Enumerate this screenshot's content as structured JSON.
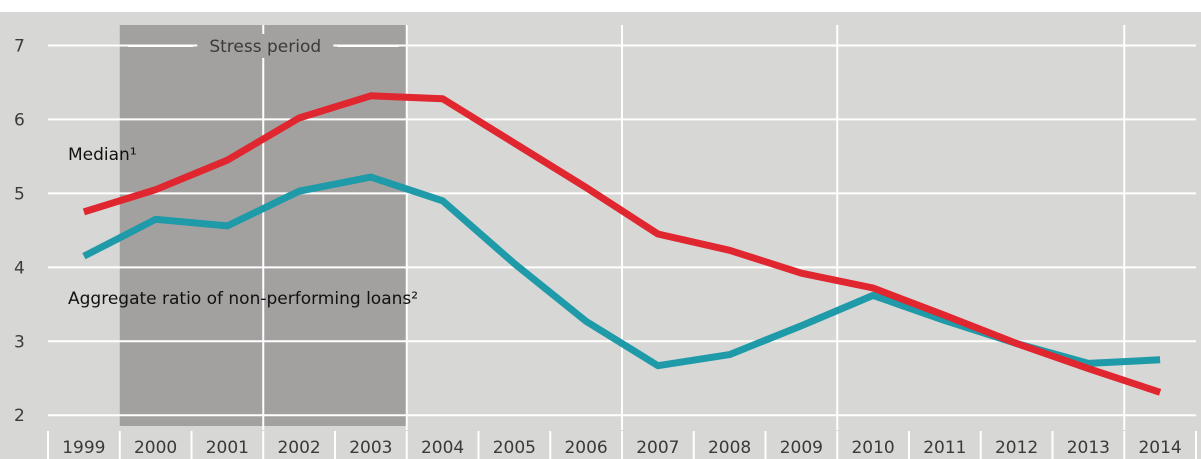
{
  "chart_data": {
    "type": "line",
    "x": [
      1999,
      2000,
      2001,
      2002,
      2003,
      2004,
      2005,
      2006,
      2007,
      2008,
      2009,
      2010,
      2011,
      2012,
      2013,
      2014
    ],
    "x_tick_labels": [
      "1999",
      "2000",
      "2001",
      "2002",
      "2003",
      "2004",
      "2005",
      "2006",
      "2007",
      "2008",
      "2009",
      "2010",
      "2011",
      "2012",
      "2013",
      "2014"
    ],
    "y_ticks": [
      "2",
      "3",
      "4",
      "5",
      "6",
      "7"
    ],
    "ylim": [
      1.8,
      7.25
    ],
    "grid": true,
    "stress_period": {
      "label": "Stress period",
      "from": 2000,
      "to": 2003
    },
    "series": [
      {
        "name": "Median¹",
        "color": "#e0262f",
        "values": [
          4.75,
          5.05,
          5.45,
          6.02,
          6.32,
          6.28,
          5.68,
          5.08,
          4.45,
          4.23,
          3.92,
          3.72,
          3.35,
          2.97,
          2.63,
          2.31
        ]
      },
      {
        "name": "Aggregate ratio of non-performing loans²",
        "color": "#1e9aa8",
        "values": [
          4.15,
          4.65,
          4.56,
          5.03,
          5.22,
          4.9,
          4.05,
          3.27,
          2.67,
          2.82,
          3.21,
          3.62,
          3.28,
          2.97,
          2.7,
          2.75
        ]
      }
    ]
  }
}
